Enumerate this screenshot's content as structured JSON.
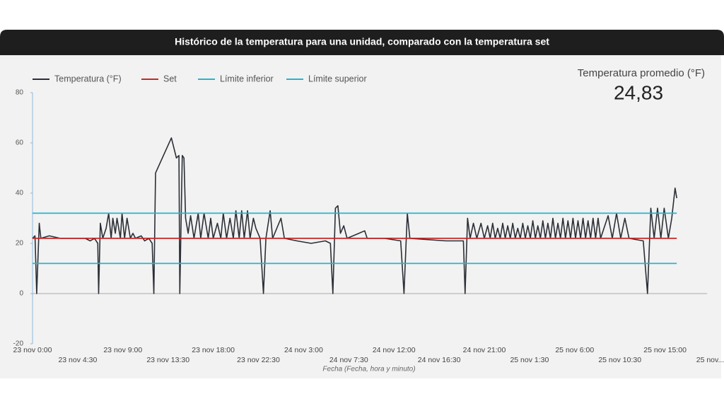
{
  "chart_data": {
    "type": "line",
    "title": "Histórico de la temperatura para una unidad, comparado con la temperatura set",
    "x_label": "Fecha (Fecha, hora y minuto)",
    "stat": {
      "label": "Temperatura promedio (°F)",
      "value": "24,83"
    },
    "ylim": [
      -20,
      80
    ],
    "yticks": [
      -20,
      0,
      20,
      40,
      60,
      80
    ],
    "xlim": [
      "23 nov 0:00",
      "25 nov 19:30"
    ],
    "xticks": [
      "23 nov 0:00",
      "23 nov 4:30",
      "23 nov 9:00",
      "23 nov 13:30",
      "23 nov 18:00",
      "23 nov 22:30",
      "24 nov 3:00",
      "24 nov 7:30",
      "24 nov 12:00",
      "24 nov 16:30",
      "24 nov 21:00",
      "25 nov 1:30",
      "25 nov 6:00",
      "25 nov 10:30",
      "25 nov 15:00",
      {
        "value": "25 nov 19:30",
        "label": "25 nov..."
      }
    ],
    "grid": false,
    "legend": "top-left",
    "series": [
      {
        "name": "Temperatura (°F)",
        "color": "#2b2f36",
        "x": [
          "23 nov 0:00",
          "23 nov 0:15",
          "23 nov 0:25",
          "23 nov 0:40",
          "23 nov 0:50",
          "23 nov 1:40",
          "23 nov 2:45",
          "23 nov 3:50",
          "23 nov 5:15",
          "23 nov 5:45",
          "23 nov 6:10",
          "23 nov 6:30",
          "23 nov 6:35",
          "23 nov 6:45",
          "23 nov 7:00",
          "23 nov 7:20",
          "23 nov 7:35",
          "23 nov 7:50",
          "23 nov 8:00",
          "23 nov 8:15",
          "23 nov 8:25",
          "23 nov 8:45",
          "23 nov 8:55",
          "23 nov 9:10",
          "23 nov 9:25",
          "23 nov 9:45",
          "23 nov 10:00",
          "23 nov 10:15",
          "23 nov 10:50",
          "23 nov 11:10",
          "23 nov 11:35",
          "23 nov 11:55",
          "23 nov 12:05",
          "23 nov 12:15",
          "23 nov 13:50",
          "23 nov 14:20",
          "23 nov 14:35",
          "23 nov 14:40",
          "23 nov 14:55",
          "23 nov 15:05",
          "23 nov 15:15",
          "23 nov 15:30",
          "23 nov 15:45",
          "23 nov 16:05",
          "23 nov 16:30",
          "23 nov 16:45",
          "23 nov 17:05",
          "23 nov 17:30",
          "23 nov 17:45",
          "23 nov 18:00",
          "23 nov 18:25",
          "23 nov 18:45",
          "23 nov 19:00",
          "23 nov 19:20",
          "23 nov 19:40",
          "23 nov 20:00",
          "23 nov 20:15",
          "23 nov 20:35",
          "23 nov 20:50",
          "23 nov 21:05",
          "23 nov 21:25",
          "23 nov 21:40",
          "23 nov 22:00",
          "23 nov 22:15",
          "23 nov 22:40",
          "23 nov 23:00",
          "23 nov 23:15",
          "23 nov 23:40",
          "23 nov 23:55",
          "24 nov 0:45",
          "24 nov 1:05",
          "24 nov 2:20",
          "24 nov 3:45",
          "24 nov 5:10",
          "24 nov 5:40",
          "24 nov 5:55",
          "24 nov 6:10",
          "24 nov 6:25",
          "24 nov 6:40",
          "24 nov 7:00",
          "24 nov 7:20",
          "24 nov 9:05",
          "24 nov 9:20",
          "24 nov 11:05",
          "24 nov 12:40",
          "24 nov 13:00",
          "24 nov 13:20",
          "24 nov 13:35",
          "24 nov 17:10",
          "24 nov 18:55",
          "24 nov 19:05",
          "24 nov 19:20",
          "24 nov 19:35",
          "24 nov 19:55",
          "24 nov 20:15",
          "24 nov 20:40",
          "24 nov 21:00",
          "24 nov 21:20",
          "24 nov 21:35",
          "24 nov 21:50",
          "24 nov 22:05",
          "24 nov 22:20",
          "24 nov 22:35",
          "24 nov 22:50",
          "24 nov 23:05",
          "24 nov 23:20",
          "24 nov 23:35",
          "24 nov 23:50",
          "25 nov 0:05",
          "25 nov 0:20",
          "25 nov 0:35",
          "25 nov 0:50",
          "25 nov 1:05",
          "25 nov 1:20",
          "25 nov 1:35",
          "25 nov 1:50",
          "25 nov 2:05",
          "25 nov 2:20",
          "25 nov 2:35",
          "25 nov 2:50",
          "25 nov 3:05",
          "25 nov 3:20",
          "25 nov 3:35",
          "25 nov 3:50",
          "25 nov 4:05",
          "25 nov 4:20",
          "25 nov 4:35",
          "25 nov 4:50",
          "25 nov 5:05",
          "25 nov 5:20",
          "25 nov 5:35",
          "25 nov 5:50",
          "25 nov 6:05",
          "25 nov 6:20",
          "25 nov 6:35",
          "25 nov 6:50",
          "25 nov 7:05",
          "25 nov 7:20",
          "25 nov 7:35",
          "25 nov 7:50",
          "25 nov 8:05",
          "25 nov 8:20",
          "25 nov 8:35",
          "25 nov 9:20",
          "25 nov 9:45",
          "25 nov 10:10",
          "25 nov 10:35",
          "25 nov 11:00",
          "25 nov 11:25",
          "25 nov 12:50",
          "25 nov 13:15",
          "25 nov 13:35",
          "25 nov 13:55",
          "25 nov 14:15",
          "25 nov 14:35",
          "25 nov 14:55",
          "25 nov 15:20",
          "25 nov 15:40",
          "25 nov 16:00",
          "25 nov 16:10"
        ],
        "values": [
          22,
          23,
          0,
          28,
          22,
          23,
          22,
          22,
          22,
          21,
          22,
          20,
          0,
          28,
          22,
          26,
          32,
          22,
          30,
          24,
          30,
          22,
          32,
          22,
          30,
          22,
          24,
          22,
          23,
          21,
          22,
          20,
          0,
          48,
          62,
          54,
          55,
          0,
          55,
          54,
          30,
          24,
          31,
          22,
          32,
          22,
          32,
          22,
          30,
          22,
          28,
          22,
          32,
          22,
          30,
          22,
          33,
          22,
          33,
          22,
          33,
          22,
          30,
          26,
          22,
          0,
          22,
          33,
          22,
          30,
          22,
          21,
          20,
          21,
          20,
          0,
          34,
          35,
          24,
          27,
          22,
          25,
          22,
          22,
          21,
          0,
          32,
          22,
          21,
          21,
          0,
          30,
          22,
          28,
          22,
          28,
          22,
          27,
          22,
          28,
          22,
          26,
          22,
          28,
          22,
          27,
          22,
          28,
          22,
          26,
          22,
          28,
          22,
          27,
          22,
          29,
          22,
          27,
          22,
          29,
          22,
          28,
          22,
          30,
          22,
          28,
          22,
          30,
          22,
          29,
          22,
          30,
          22,
          29,
          22,
          30,
          22,
          29,
          22,
          30,
          22,
          30,
          22,
          31,
          22,
          32,
          22,
          30,
          22,
          21,
          0,
          34,
          22,
          34,
          22,
          34,
          22,
          30,
          42,
          38
        ]
      },
      {
        "name": "Set",
        "color": "#c62828",
        "x": [
          "23 nov 0:00",
          "25 nov 16:10"
        ],
        "values": [
          22,
          22
        ]
      },
      {
        "name": "Límite inferior",
        "color": "#26b5c9",
        "x": [
          "23 nov 0:00",
          "25 nov 16:10"
        ],
        "values": [
          12,
          12
        ]
      },
      {
        "name": "Límite superior",
        "color": "#26b5c9",
        "x": [
          "23 nov 0:00",
          "25 nov 16:10"
        ],
        "values": [
          32,
          32
        ]
      }
    ]
  }
}
